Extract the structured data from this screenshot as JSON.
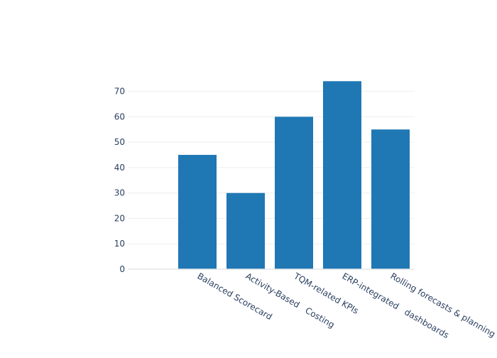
{
  "chart_data": {
    "type": "bar",
    "categories": [
      "Balanced Scorecard",
      "Activity-Based   Costing",
      "TQM-related KPIs",
      "ERP-integrated   dashboards",
      "Rolling forecasts & planning"
    ],
    "values": [
      45,
      30,
      60,
      74,
      55
    ],
    "ylim": [
      0,
      78
    ],
    "yticks": [
      0,
      10,
      20,
      30,
      40,
      50,
      60,
      70
    ],
    "grid": true,
    "bar_color": "#1f77b4",
    "grid_color": "#eeeeee",
    "text_color": "#2a3f5f"
  }
}
